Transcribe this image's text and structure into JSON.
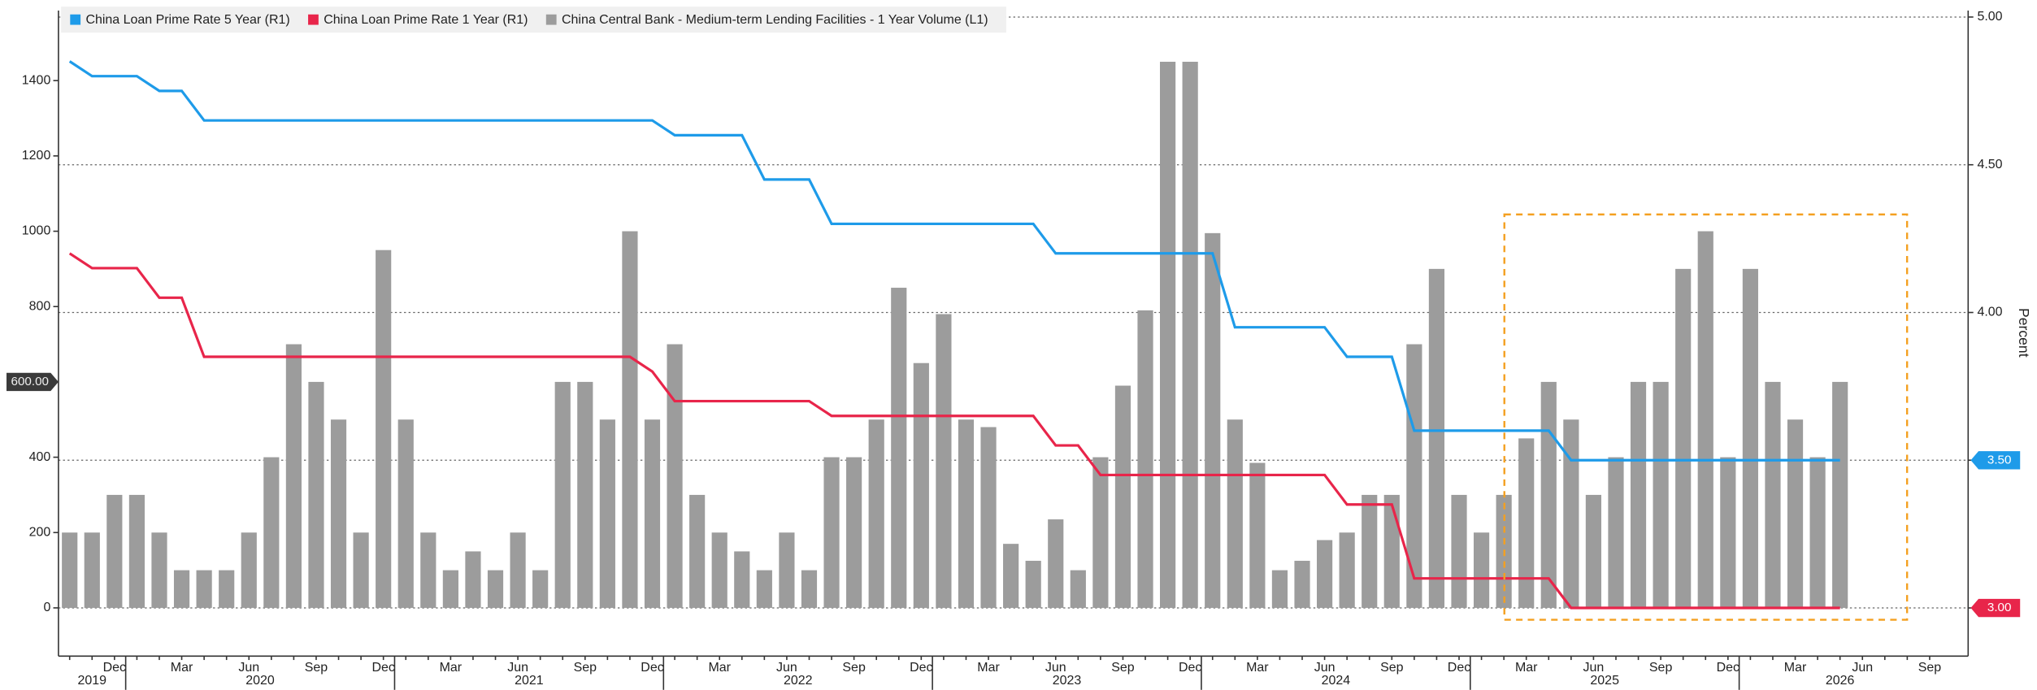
{
  "chart_data": {
    "type": "combo",
    "categories": [
      null,
      null,
      "Dec",
      null,
      null,
      "Mar",
      null,
      null,
      "Jun",
      null,
      null,
      "Sep",
      null,
      null,
      "Dec",
      null,
      null,
      "Mar",
      null,
      null,
      "Jun",
      null,
      null,
      "Sep",
      null,
      null,
      "Dec",
      null,
      null,
      "Mar",
      null,
      null,
      "Jun",
      null,
      null,
      "Sep",
      null,
      null,
      "Dec",
      null,
      null,
      "Mar",
      null,
      null,
      "Jun",
      null,
      null,
      "Sep",
      null,
      null,
      "Dec",
      null,
      null,
      "Mar",
      null,
      null,
      "Jun",
      null,
      null,
      "Sep",
      null,
      null,
      "Dec",
      null,
      null,
      "Mar",
      null,
      null,
      "Jun",
      null,
      null,
      "Sep",
      null,
      null,
      "Dec",
      null,
      null,
      "Mar",
      null,
      null,
      "Jun",
      null,
      null,
      "Sep"
    ],
    "year_labels": [
      "2019",
      "2020",
      "2021",
      "2022",
      "2023",
      "2024",
      "2025",
      "2026"
    ],
    "series": [
      {
        "name": "China Loan Prime Rate 5 Year (R1)",
        "type": "line",
        "axis": "y2",
        "color": "#1e9be9",
        "last_value_label": "3.50",
        "values": [
          4.85,
          4.8,
          4.8,
          4.8,
          4.75,
          4.75,
          4.65,
          4.65,
          4.65,
          4.65,
          4.65,
          4.65,
          4.65,
          4.65,
          4.65,
          4.65,
          4.65,
          4.65,
          4.65,
          4.65,
          4.65,
          4.65,
          4.65,
          4.65,
          4.65,
          4.65,
          4.65,
          4.6,
          4.6,
          4.6,
          4.6,
          4.45,
          4.45,
          4.45,
          4.3,
          4.3,
          4.3,
          4.3,
          4.3,
          4.3,
          4.3,
          4.3,
          4.3,
          4.3,
          4.2,
          4.2,
          4.2,
          4.2,
          4.2,
          4.2,
          4.2,
          4.2,
          3.95,
          3.95,
          3.95,
          3.95,
          3.95,
          3.85,
          3.85,
          3.85,
          3.6,
          3.6,
          3.6,
          3.6,
          3.6,
          3.6,
          3.6,
          3.5,
          3.5,
          3.5,
          3.5,
          3.5,
          3.5,
          3.5,
          3.5,
          3.5,
          3.5,
          3.5,
          3.5,
          3.5,
          null,
          null,
          null,
          null
        ]
      },
      {
        "name": "China Loan Prime Rate 1 Year (R1)",
        "type": "line",
        "axis": "y2",
        "color": "#e8254a",
        "last_value_label": "3.00",
        "values": [
          4.2,
          4.15,
          4.15,
          4.15,
          4.05,
          4.05,
          3.85,
          3.85,
          3.85,
          3.85,
          3.85,
          3.85,
          3.85,
          3.85,
          3.85,
          3.85,
          3.85,
          3.85,
          3.85,
          3.85,
          3.85,
          3.85,
          3.85,
          3.85,
          3.85,
          3.85,
          3.8,
          3.7,
          3.7,
          3.7,
          3.7,
          3.7,
          3.7,
          3.7,
          3.65,
          3.65,
          3.65,
          3.65,
          3.65,
          3.65,
          3.65,
          3.65,
          3.65,
          3.65,
          3.55,
          3.55,
          3.45,
          3.45,
          3.45,
          3.45,
          3.45,
          3.45,
          3.45,
          3.45,
          3.45,
          3.45,
          3.45,
          3.35,
          3.35,
          3.35,
          3.1,
          3.1,
          3.1,
          3.1,
          3.1,
          3.1,
          3.1,
          3,
          3,
          3,
          3,
          3,
          3,
          3,
          3,
          3,
          3,
          3,
          3,
          3,
          null,
          null,
          null,
          null
        ]
      },
      {
        "name": "China Central Bank - Medium-term Lending Facilities - 1 Year Volume (L1)",
        "type": "bar",
        "color": "#9c9c9c",
        "last_value_label": "600.00",
        "values": [
          200,
          200,
          300,
          300,
          200,
          100,
          100,
          100,
          200,
          400,
          700,
          600,
          500,
          200,
          950,
          500,
          200,
          100,
          150,
          100,
          200,
          100,
          600,
          600,
          500,
          1000,
          500,
          700,
          300,
          200,
          150,
          100,
          200,
          100,
          400,
          400,
          500,
          850,
          650,
          780,
          500,
          480,
          170,
          125,
          235,
          100,
          400,
          590,
          790,
          1450,
          1450,
          995,
          500,
          385,
          100,
          125,
          180,
          200,
          300,
          300,
          700,
          900,
          300,
          200,
          300,
          450,
          600,
          500,
          300,
          400,
          600,
          600,
          900,
          1000,
          400,
          900,
          600,
          500,
          400,
          600,
          null,
          null,
          null,
          null
        ]
      }
    ],
    "ylim": [
      -128,
      1586
    ],
    "yticks": [
      0,
      200,
      400,
      600,
      800,
      1000,
      1200,
      1400
    ],
    "y2lim": [
      2.837,
      5.022
    ],
    "y2ticks": [
      {
        "value": 3,
        "label": "3.00"
      },
      {
        "value": 3.5,
        "label": "3.50"
      },
      {
        "value": 4,
        "label": "4.00"
      },
      {
        "value": 4.5,
        "label": "4.50"
      },
      {
        "value": 5,
        "label": "5.00"
      }
    ],
    "y2label": "Percent",
    "grid": "y2",
    "legend": "top-left"
  }
}
